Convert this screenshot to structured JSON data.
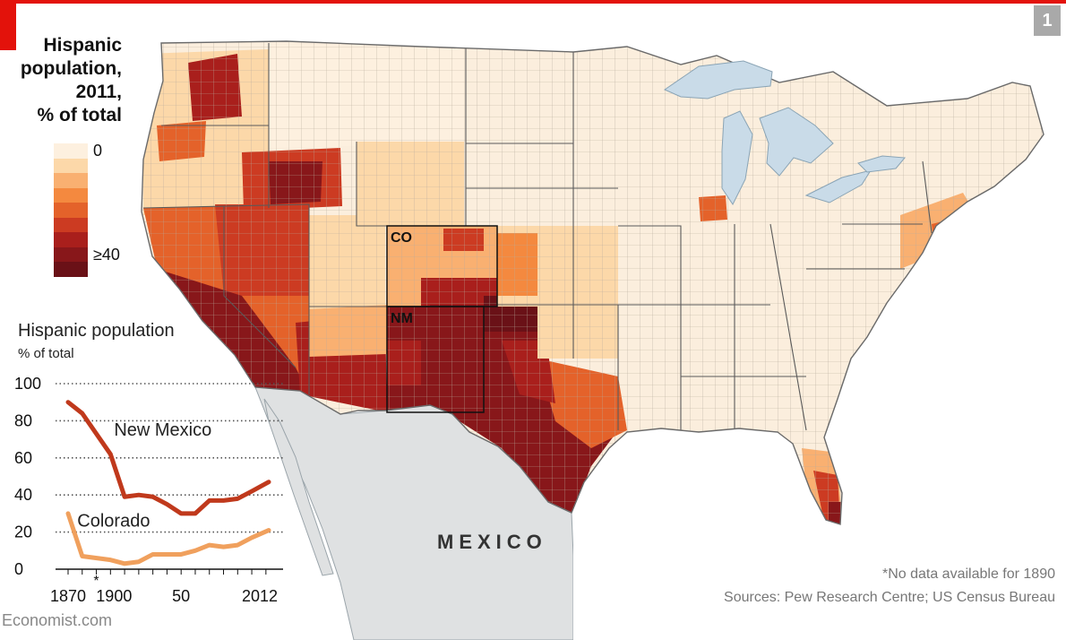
{
  "figure_number": "1",
  "legend": {
    "title_lines": [
      "Hispanic",
      "population,",
      "2011,",
      "% of total"
    ],
    "low_label": "0",
    "high_label": "≥40",
    "colors": [
      "#fdf0df",
      "#fcd8a9",
      "#f9b071",
      "#f4893f",
      "#e4622a",
      "#cc3b22",
      "#a91f1c",
      "#88171a",
      "#6a1117"
    ]
  },
  "map": {
    "states": [
      {
        "abbr": "CO",
        "name": "Colorado"
      },
      {
        "abbr": "NM",
        "name": "New Mexico"
      }
    ],
    "country_label": "MEXICO",
    "colors": {
      "land_default": "#fbeedd",
      "mexico": "#dfe1e2",
      "water": "#c9dbe8",
      "border": "#5a5a5a",
      "county": "#b8ab9c"
    }
  },
  "chart_data": {
    "type": "line",
    "title": "Hispanic population",
    "subtitle": "% of total",
    "x_tick_labels": [
      "1870",
      "1900",
      "50",
      "2012"
    ],
    "asterisk_mark": "*",
    "xlim": [
      1870,
      2012
    ],
    "ylim": [
      0,
      100
    ],
    "y_ticks": [
      0,
      20,
      40,
      60,
      80,
      100
    ],
    "grid": true,
    "series": [
      {
        "name": "New Mexico",
        "color": "#c0391c",
        "x": [
          1870,
          1880,
          1900,
          1910,
          1920,
          1930,
          1940,
          1950,
          1960,
          1970,
          1980,
          1990,
          2000,
          2012
        ],
        "values": [
          90,
          84,
          62,
          39,
          40,
          39,
          35,
          30,
          30,
          37,
          37,
          38,
          42,
          47
        ]
      },
      {
        "name": "Colorado",
        "color": "#f0a05d",
        "x": [
          1870,
          1880,
          1900,
          1910,
          1920,
          1930,
          1940,
          1950,
          1960,
          1970,
          1980,
          1990,
          2000,
          2012
        ],
        "values": [
          30,
          7,
          5,
          3,
          4,
          8,
          8,
          8,
          10,
          13,
          12,
          13,
          17,
          21
        ]
      }
    ]
  },
  "footnote": "*No data available for 1890",
  "sources": "Sources: Pew Research Centre; US Census Bureau",
  "brand": "Economist.com"
}
